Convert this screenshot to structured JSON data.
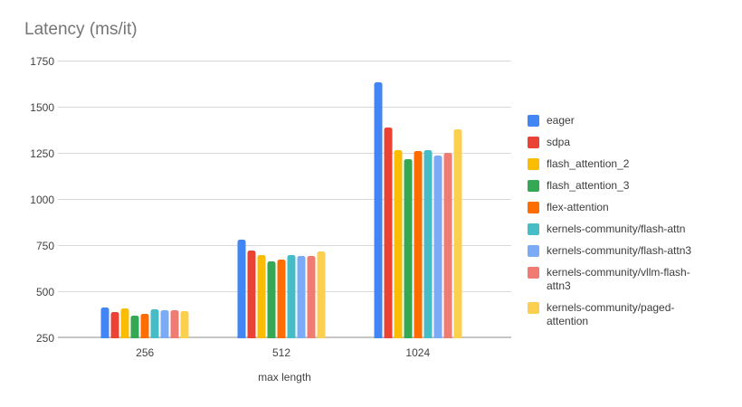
{
  "title": "Latency (ms/it)",
  "chart_data": {
    "type": "bar",
    "title": "Latency (ms/it)",
    "xlabel": "max length",
    "ylabel": "",
    "ylim": [
      250,
      1750
    ],
    "yticks": [
      250,
      500,
      750,
      1000,
      1250,
      1500,
      1750
    ],
    "grid": true,
    "legend_position": "right",
    "categories": [
      "256",
      "512",
      "1024"
    ],
    "group_center_pct": [
      19.2,
      49.3,
      79.4
    ],
    "series": [
      {
        "name": "eager",
        "color": "#4285F4",
        "values": [
          415,
          785,
          1638
        ]
      },
      {
        "name": "sdpa",
        "color": "#EA4335",
        "values": [
          390,
          727,
          1390
        ]
      },
      {
        "name": "flash_attention_2",
        "color": "#FBBC04",
        "values": [
          410,
          703,
          1272
        ]
      },
      {
        "name": "flash_attention_3",
        "color": "#34A853",
        "values": [
          375,
          666,
          1220
        ]
      },
      {
        "name": "flex-attention",
        "color": "#FF6D01",
        "values": [
          385,
          677,
          1265
        ]
      },
      {
        "name": "kernels-community/flash-attn",
        "color": "#46BDC6",
        "values": [
          407,
          702,
          1270
        ]
      },
      {
        "name": "kernels-community/flash-attn3",
        "color": "#7BAAF7",
        "values": [
          400,
          695,
          1242
        ]
      },
      {
        "name": "kernels-community/vllm-flash-attn3",
        "color": "#F07B72",
        "values": [
          402,
          698,
          1255
        ]
      },
      {
        "name": "kernels-community/paged-attention",
        "color": "#FCD04F",
        "values": [
          395,
          720,
          1385
        ]
      }
    ]
  },
  "colors": {
    "background": "#ffffff",
    "title_text": "#757575",
    "axis_text": "#424242",
    "legend_text": "#3c3c3c",
    "gridline": "#d9d9d9",
    "baseline": "#c6c6c6"
  }
}
